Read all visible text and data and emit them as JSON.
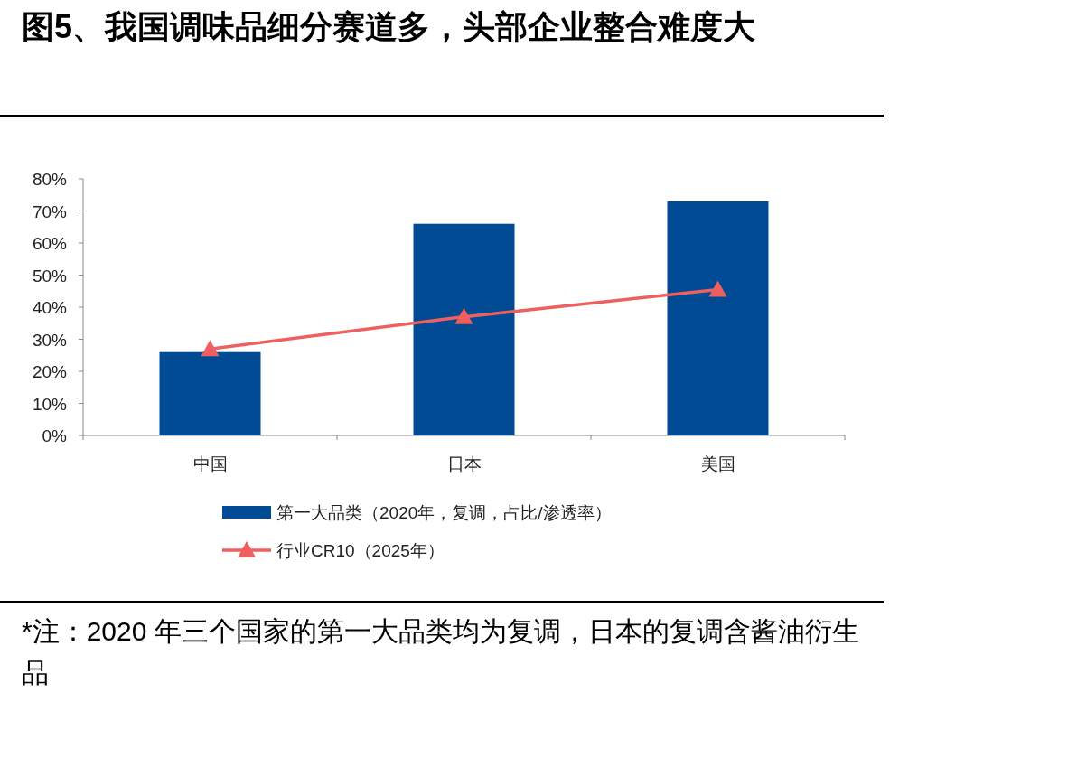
{
  "chart_data": {
    "type": "bar",
    "title": "图5、我国调味品细分赛道多，头部企业整合难度大",
    "categories": [
      "中国",
      "日本",
      "美国"
    ],
    "series": [
      {
        "name": "第一大品类（2020年，复调，占比/渗透率）",
        "color": "#004b93",
        "values": [
          26,
          66,
          73
        ]
      },
      {
        "name": "行业CR10（2025年）",
        "type": "line",
        "color": "#ee5f5f",
        "marker": "triangle",
        "values": [
          27,
          37,
          45.5
        ]
      }
    ],
    "ylim": [
      0,
      80
    ],
    "yticks": [
      {
        "value": 0,
        "label": "0%"
      },
      {
        "value": 10,
        "label": "10%"
      },
      {
        "value": 20,
        "label": "20%"
      },
      {
        "value": 30,
        "label": "30%"
      },
      {
        "value": 40,
        "label": "40%"
      },
      {
        "value": 50,
        "label": "50%"
      },
      {
        "value": 60,
        "label": "60%"
      },
      {
        "value": 70,
        "label": "70%"
      },
      {
        "value": 80,
        "label": "80%"
      }
    ],
    "grid": false,
    "legend": "bottom",
    "annotations": [
      "*注：2020 年三个国家的第一大品类均为复调，日本的复调含酱油衍生品"
    ]
  }
}
